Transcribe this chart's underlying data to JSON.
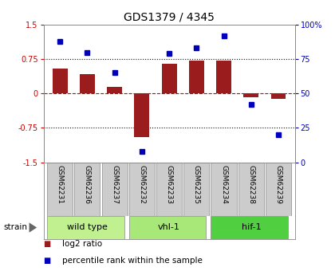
{
  "title": "GDS1379 / 4345",
  "samples": [
    "GSM62231",
    "GSM62236",
    "GSM62237",
    "GSM62232",
    "GSM62233",
    "GSM62235",
    "GSM62234",
    "GSM62238",
    "GSM62239"
  ],
  "log2_ratio": [
    0.55,
    0.42,
    0.15,
    -0.95,
    0.65,
    0.72,
    0.72,
    -0.08,
    -0.12
  ],
  "percentile": [
    88,
    80,
    65,
    8,
    79,
    83,
    92,
    42,
    20
  ],
  "groups": [
    {
      "label": "wild type",
      "start": 0,
      "end": 3,
      "color": "#c0f090"
    },
    {
      "label": "vhl-1",
      "start": 3,
      "end": 6,
      "color": "#a8e878"
    },
    {
      "label": "hif-1",
      "start": 6,
      "end": 9,
      "color": "#50d040"
    }
  ],
  "bar_color": "#9b1c1c",
  "dot_color": "#0000bb",
  "hline_dotted_color": "#111111",
  "zero_line_color": "#cc0000",
  "ylim_left": [
    -1.5,
    1.5
  ],
  "ylim_right": [
    0,
    100
  ],
  "yticks_left": [
    -1.5,
    -0.75,
    0,
    0.75,
    1.5
  ],
  "yticks_right": [
    0,
    25,
    50,
    75,
    100
  ],
  "ytick_labels_left": [
    "-1.5",
    "-0.75",
    "0",
    "0.75",
    "1.5"
  ],
  "ytick_labels_right": [
    "0",
    "25",
    "50",
    "75",
    "100%"
  ],
  "bg_color": "#ffffff",
  "plot_bg_color": "#ffffff",
  "sample_box_color": "#cccccc",
  "bar_width": 0.55,
  "title_fontsize": 10,
  "tick_fontsize": 7,
  "legend_fontsize": 7.5,
  "group_fontsize": 8,
  "sample_fontsize": 6.5,
  "strain_label": "strain"
}
